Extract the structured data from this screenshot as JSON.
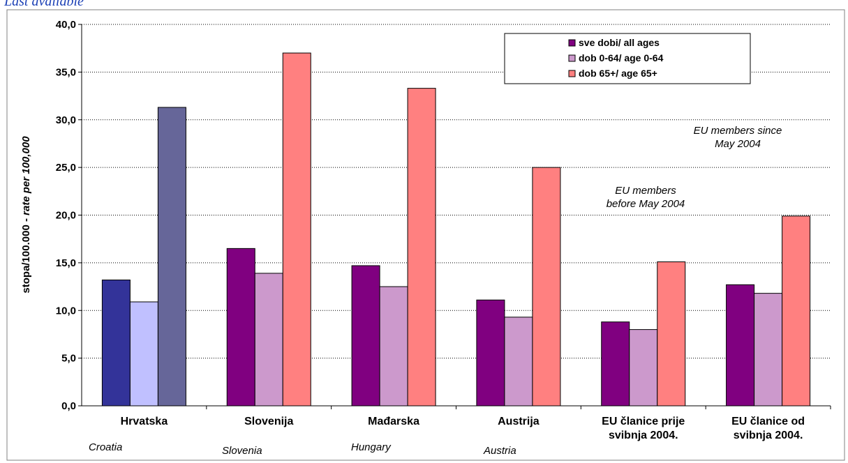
{
  "top_caption": "Last available",
  "colors": {
    "all_ages": "#800080",
    "age_0_64": "#cc99cc",
    "age_65_plus": "#ff8080",
    "croatia_all": "#333399",
    "croatia_0_64": "#c0c0ff",
    "croatia_65_plus": "#666699"
  },
  "chart_data": {
    "type": "bar",
    "title": "",
    "xlabel": "",
    "ylabel_main": "stopa/100.000 - ",
    "ylabel_italic": "rate per 100,000",
    "ylim": [
      0,
      40
    ],
    "yticks": [
      "0,0",
      "5,0",
      "10,0",
      "15,0",
      "20,0",
      "25,0",
      "30,0",
      "35,0",
      "40,0"
    ],
    "grid": true,
    "legend_position": "top-right",
    "categories": [
      {
        "label_lines": [
          "Hrvatska"
        ],
        "sub": "Croatia"
      },
      {
        "label_lines": [
          "Slovenija"
        ],
        "sub": "Slovenia"
      },
      {
        "label_lines": [
          "Mađarska"
        ],
        "sub": "Hungary"
      },
      {
        "label_lines": [
          "Austrija"
        ],
        "sub": "Austria"
      },
      {
        "label_lines": [
          "EU članice prije",
          "svibnja 2004."
        ],
        "sub": ""
      },
      {
        "label_lines": [
          "EU članice od",
          "svibnja 2004."
        ],
        "sub": ""
      }
    ],
    "series": [
      {
        "name": "sve dobi/ all ages",
        "values": [
          13.2,
          16.5,
          14.7,
          11.1,
          8.8,
          12.7
        ]
      },
      {
        "name": "dob 0-64/ age 0-64",
        "values": [
          10.9,
          13.9,
          12.5,
          9.3,
          8.0,
          11.8
        ]
      },
      {
        "name": "dob 65+/ age 65+",
        "values": [
          31.3,
          37.0,
          33.3,
          25.0,
          15.1,
          19.9
        ]
      }
    ],
    "annotations": [
      {
        "lines": [
          "EU members since",
          "May 2004"
        ]
      },
      {
        "lines": [
          "EU members",
          "before May 2004"
        ]
      }
    ]
  }
}
